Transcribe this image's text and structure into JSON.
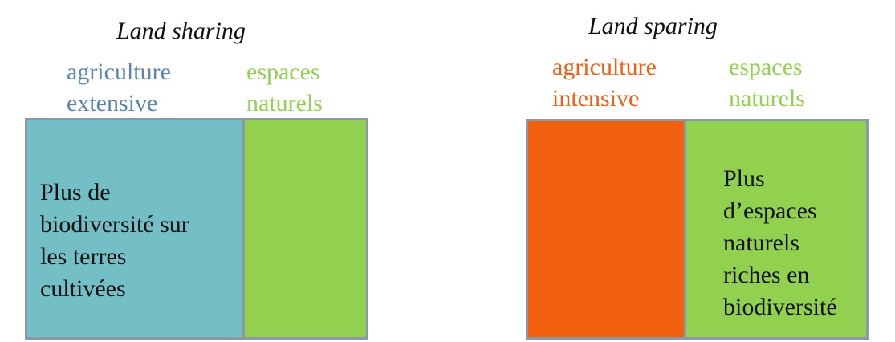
{
  "colors": {
    "extensive": "#74bfc6",
    "intensive": "#f2600f",
    "natural": "#92d050",
    "label_extensive": "#5a85ad",
    "label_intensive": "#e8601a",
    "label_natural": "#92d050",
    "border": "#8a9aa6"
  },
  "sharing": {
    "title": "Land sharing",
    "agri_label": "agriculture\nextensive",
    "natural_label": "espaces\nnaturels",
    "agri_text": "Plus de\nbiodiversité sur\nles terres\ncultivées",
    "natural_text": ""
  },
  "sparing": {
    "title": "Land sparing",
    "agri_label": "agriculture\nintensive",
    "natural_label": "espaces\nnaturels",
    "agri_text": "",
    "natural_text": "Plus\nd’espaces\nnaturels\nriches en\nbiodiversité"
  }
}
